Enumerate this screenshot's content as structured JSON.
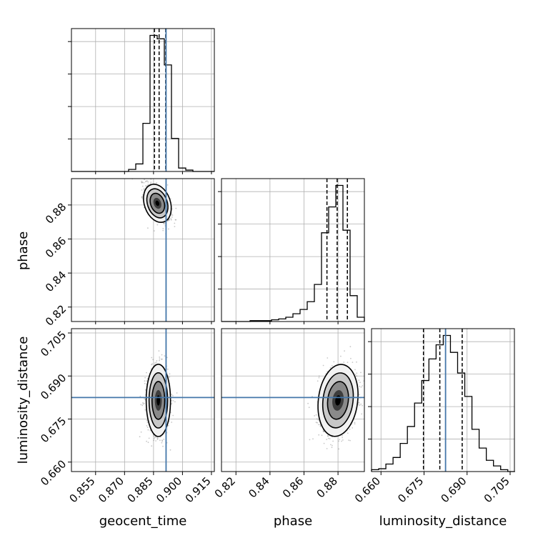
{
  "chart_data": {
    "type": "corner",
    "parameters": [
      "geocent_time",
      "phase",
      "luminosity_distance"
    ],
    "labels": {
      "geocent_time": "geocent_time",
      "phase": "phase",
      "luminosity_distance": "luminosity_distance"
    },
    "truths": {
      "geocent_time": 0.8915,
      "phase": null,
      "luminosity_distance": 0.6825
    },
    "quantiles": {
      "geocent_time": [
        0.8855,
        0.8879,
        0.8913
      ],
      "phase": [
        0.8735,
        0.8795,
        0.8855
      ],
      "luminosity_distance": [
        0.6748,
        0.6805,
        0.6883
      ]
    },
    "ranges": {
      "geocent_time": [
        0.8425,
        0.9165
      ],
      "phase": [
        0.8115,
        0.8955
      ],
      "luminosity_distance": [
        0.6567,
        0.7065
      ]
    },
    "ticks": {
      "geocent_time": [
        "0.855",
        "0.870",
        "0.885",
        "0.900",
        "0.915"
      ],
      "phase": [
        "0.82",
        "0.84",
        "0.86",
        "0.88"
      ],
      "luminosity_distance": [
        "0.660",
        "0.675",
        "0.690",
        "0.705"
      ]
    },
    "histograms": {
      "geocent_time": {
        "edges": [
          0.8425,
          0.8462,
          0.8499,
          0.8536,
          0.8573,
          0.861,
          0.8647,
          0.8684,
          0.8721,
          0.8758,
          0.8795,
          0.8832,
          0.8869,
          0.8906,
          0.8943,
          0.898,
          0.9017,
          0.9054,
          0.9091,
          0.9128,
          0.9165
        ],
        "counts": [
          0,
          0,
          0,
          0,
          0,
          0,
          0,
          0,
          3,
          11,
          70,
          198,
          193,
          155,
          48,
          5,
          2,
          0,
          0,
          0
        ]
      },
      "phase": {
        "edges": [
          0.8115,
          0.8157,
          0.8199,
          0.8241,
          0.8283,
          0.8325,
          0.8367,
          0.8409,
          0.8451,
          0.8493,
          0.8535,
          0.8577,
          0.8619,
          0.8661,
          0.8703,
          0.8745,
          0.8787,
          0.8829,
          0.8871,
          0.8913,
          0.8955
        ],
        "counts": [
          0,
          0,
          0,
          0,
          1,
          1,
          1,
          2,
          3,
          5,
          9,
          14,
          23,
          43,
          103,
          133,
          158,
          106,
          30,
          5
        ]
      },
      "luminosity_distance": {
        "edges": [
          0.6567,
          0.6592,
          0.6617,
          0.6642,
          0.6667,
          0.6692,
          0.6717,
          0.6742,
          0.6767,
          0.6792,
          0.6817,
          0.6842,
          0.6867,
          0.6892,
          0.6917,
          0.6942,
          0.6967,
          0.6992,
          0.7017,
          0.7042,
          0.7067
        ],
        "counts": [
          2,
          3,
          8,
          15,
          30,
          48,
          73,
          97,
          120,
          135,
          145,
          127,
          105,
          80,
          45,
          25,
          12,
          6,
          2,
          0
        ]
      }
    },
    "scatter_summary": {
      "geocent_time_vs_phase": {
        "center": [
          0.887,
          0.881
        ],
        "spread": [
          0.0032,
          0.0055
        ],
        "correlation": -0.55
      },
      "geocent_time_vs_luminosity_distance": {
        "center": [
          0.8875,
          0.6815
        ],
        "spread": [
          0.003,
          0.006
        ],
        "correlation": 0.0
      },
      "phase_vs_luminosity_distance": {
        "center": [
          0.88,
          0.6815
        ],
        "spread": [
          0.0055,
          0.006
        ],
        "correlation": 0.2
      }
    },
    "grid": true,
    "truth_color": "#4477aa",
    "line_color": "#000000",
    "point_color": "#606060"
  }
}
